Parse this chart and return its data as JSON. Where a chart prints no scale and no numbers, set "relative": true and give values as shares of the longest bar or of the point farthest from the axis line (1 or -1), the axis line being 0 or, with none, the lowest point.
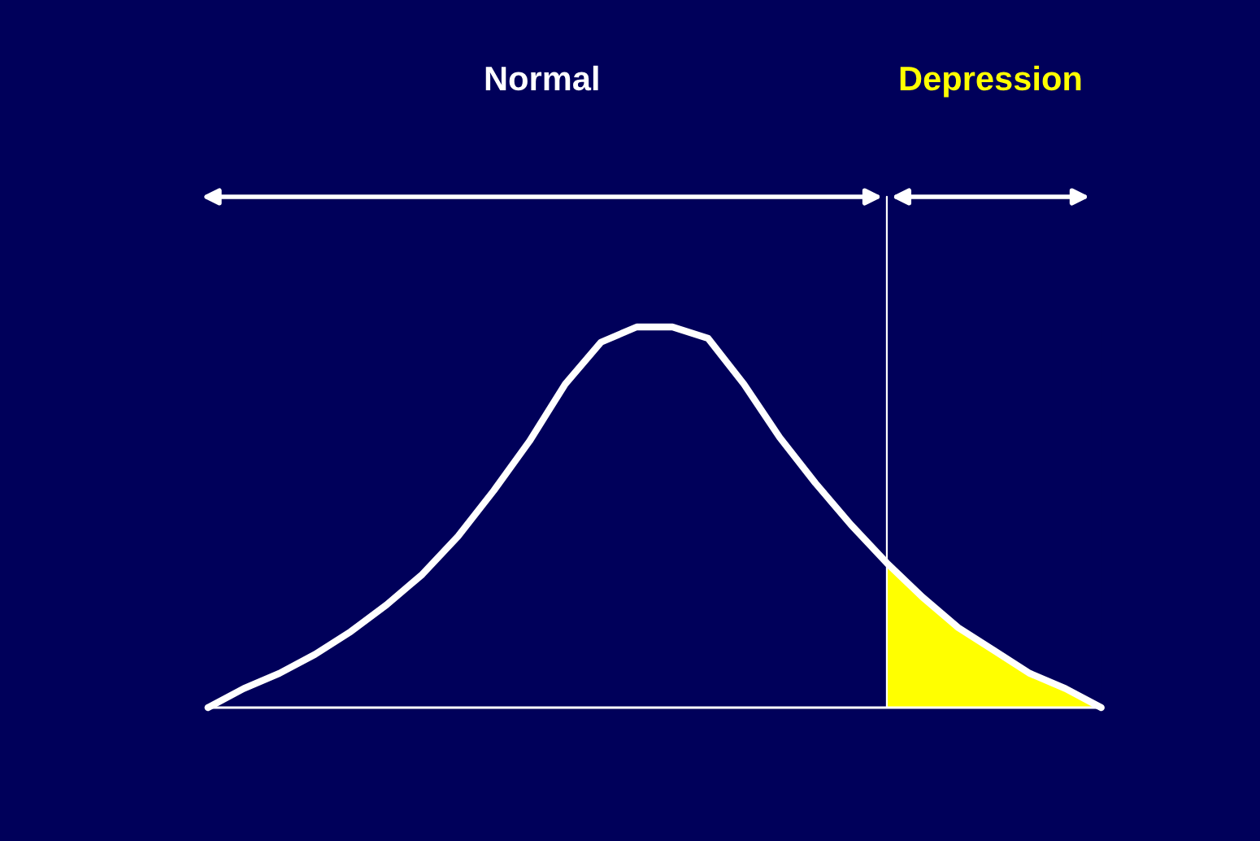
{
  "chart_data": {
    "type": "line",
    "relative": true,
    "categories": [
      null,
      null,
      null,
      null,
      null,
      null,
      null,
      null,
      null,
      null,
      null,
      null,
      null,
      null,
      null,
      null,
      null,
      null,
      null,
      null,
      null,
      null,
      null,
      null,
      null,
      null
    ],
    "series": [
      {
        "color": "#ffffff",
        "values": [
          0,
          0.05,
          0.09,
          0.14,
          0.2,
          0.27,
          0.35,
          0.45,
          0.57,
          0.7,
          0.85,
          0.96,
          1.0,
          1.0,
          0.97,
          0.85,
          0.71,
          0.59,
          0.48,
          0.38,
          0.29,
          0.21,
          0.15,
          0.09,
          0.05,
          0
        ]
      },
      {
        "type": "area",
        "color": "#ffff00",
        "values": [
          null,
          null,
          null,
          null,
          null,
          null,
          null,
          null,
          null,
          null,
          null,
          null,
          null,
          null,
          null,
          null,
          null,
          null,
          null,
          0.38,
          0.29,
          0.21,
          0.15,
          0.09,
          0.05,
          0
        ]
      }
    ],
    "annotations": [
      "Normal",
      "Depression"
    ],
    "grid": false,
    "legend": false
  }
}
